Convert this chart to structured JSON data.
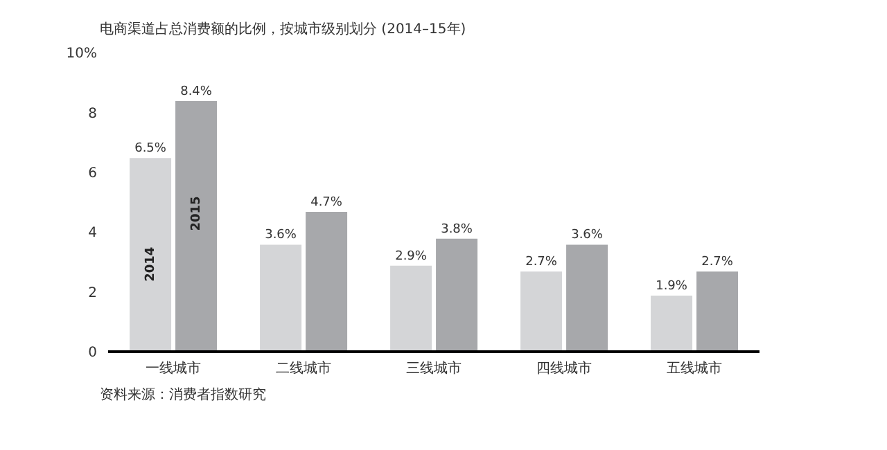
{
  "chart_data": {
    "type": "bar",
    "title": "电商渠道占总消费额的比例，按城市级别划分 (2014–15年)",
    "categories": [
      "一线城市",
      "二线城市",
      "三线城市",
      "四线城市",
      "五线城市"
    ],
    "series": [
      {
        "name": "2014",
        "color": "#d4d5d7",
        "values": [
          6.5,
          3.6,
          2.9,
          2.7,
          1.9
        ],
        "value_labels": [
          "6.5%",
          "3.6%",
          "2.9%",
          "2.7%",
          "1.9%"
        ]
      },
      {
        "name": "2015",
        "color": "#a7a8ab",
        "values": [
          8.4,
          4.7,
          3.8,
          3.6,
          2.7
        ],
        "value_labels": [
          "8.4%",
          "4.7%",
          "3.8%",
          "3.6%",
          "2.7%"
        ]
      }
    ],
    "ylim": [
      0,
      10
    ],
    "yticks": [
      0,
      2,
      4,
      6,
      8,
      {
        "value": 10,
        "label": "10%"
      }
    ],
    "grid": false,
    "annotations": [
      "资料来源：消费者指数研究"
    ]
  }
}
